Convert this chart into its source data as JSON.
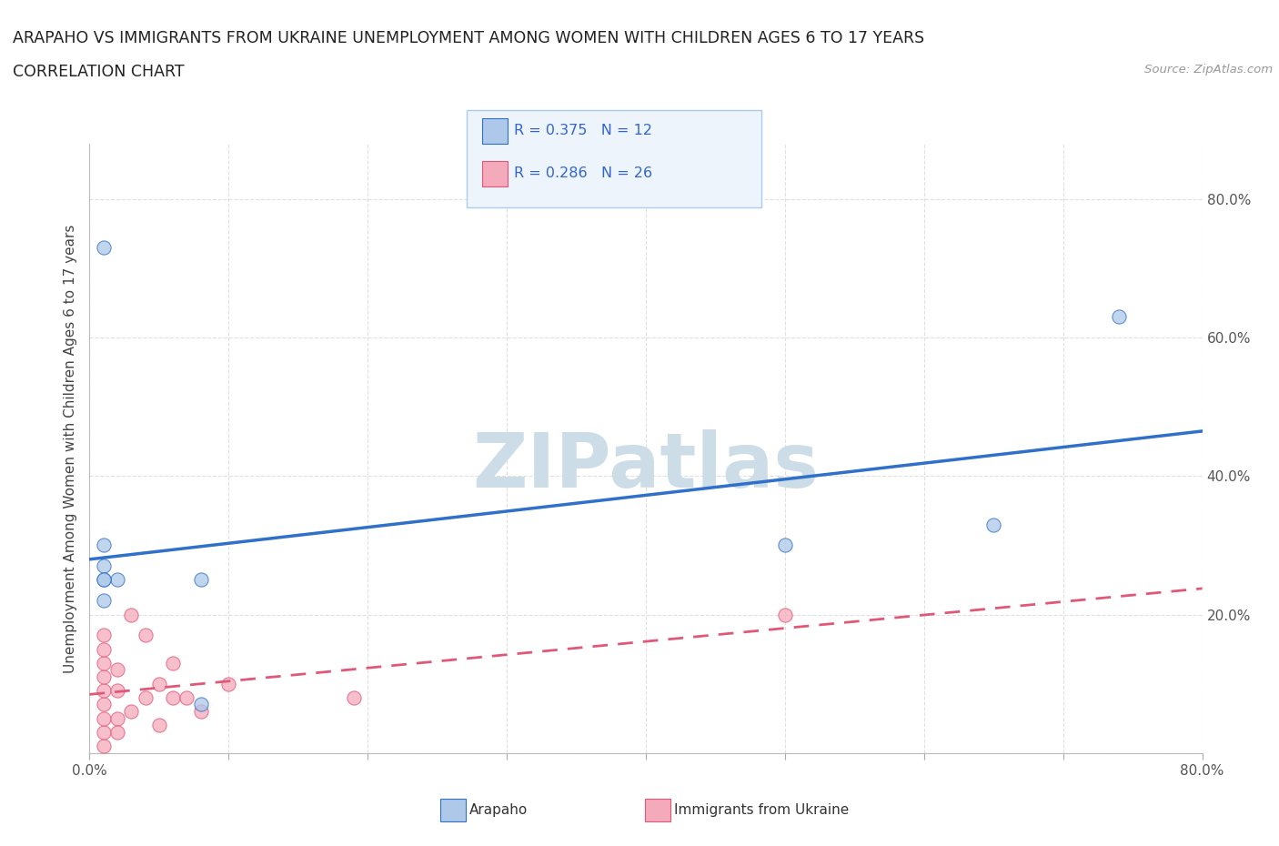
{
  "title_line1": "ARAPAHO VS IMMIGRANTS FROM UKRAINE UNEMPLOYMENT AMONG WOMEN WITH CHILDREN AGES 6 TO 17 YEARS",
  "title_line2": "CORRELATION CHART",
  "source": "Source: ZipAtlas.com",
  "ylabel": "Unemployment Among Women with Children Ages 6 to 17 years",
  "xlim": [
    0.0,
    0.8
  ],
  "ylim": [
    0.0,
    0.88
  ],
  "xtick_positions": [
    0.0,
    0.1,
    0.2,
    0.3,
    0.4,
    0.5,
    0.6,
    0.7,
    0.8
  ],
  "xticklabels": [
    "0.0%",
    "",
    "",
    "",
    "",
    "",
    "",
    "",
    "80.0%"
  ],
  "ytick_positions": [
    0.0,
    0.2,
    0.4,
    0.6,
    0.8
  ],
  "yticklabels": [
    "",
    "20.0%",
    "40.0%",
    "60.0%",
    "80.0%"
  ],
  "arapaho_R": 0.375,
  "arapaho_N": 12,
  "ukraine_R": 0.286,
  "ukraine_N": 26,
  "arapaho_color": "#adc8e8",
  "ukraine_color": "#f5aabb",
  "arapaho_line_color": "#3070c8",
  "ukraine_line_color": "#e05878",
  "arapaho_scatter_x": [
    0.01,
    0.01,
    0.02,
    0.08,
    0.74,
    0.01,
    0.01,
    0.5,
    0.65,
    0.01,
    0.01,
    0.08
  ],
  "arapaho_scatter_y": [
    0.73,
    0.27,
    0.25,
    0.25,
    0.63,
    0.3,
    0.22,
    0.3,
    0.33,
    0.25,
    0.25,
    0.07
  ],
  "ukraine_scatter_x": [
    0.01,
    0.01,
    0.01,
    0.01,
    0.01,
    0.01,
    0.01,
    0.01,
    0.01,
    0.02,
    0.02,
    0.02,
    0.02,
    0.03,
    0.03,
    0.04,
    0.04,
    0.05,
    0.05,
    0.06,
    0.06,
    0.07,
    0.08,
    0.1,
    0.19,
    0.5
  ],
  "ukraine_scatter_y": [
    0.01,
    0.03,
    0.05,
    0.07,
    0.09,
    0.11,
    0.13,
    0.15,
    0.17,
    0.09,
    0.12,
    0.05,
    0.03,
    0.2,
    0.06,
    0.17,
    0.08,
    0.1,
    0.04,
    0.08,
    0.13,
    0.08,
    0.06,
    0.1,
    0.08,
    0.2
  ],
  "watermark_text": "ZIPatlas",
  "watermark_color": "#ccdde8",
  "background_color": "#ffffff",
  "grid_color": "#cccccc",
  "legend_facecolor": "#eef4fc",
  "legend_edgecolor": "#aaccee"
}
